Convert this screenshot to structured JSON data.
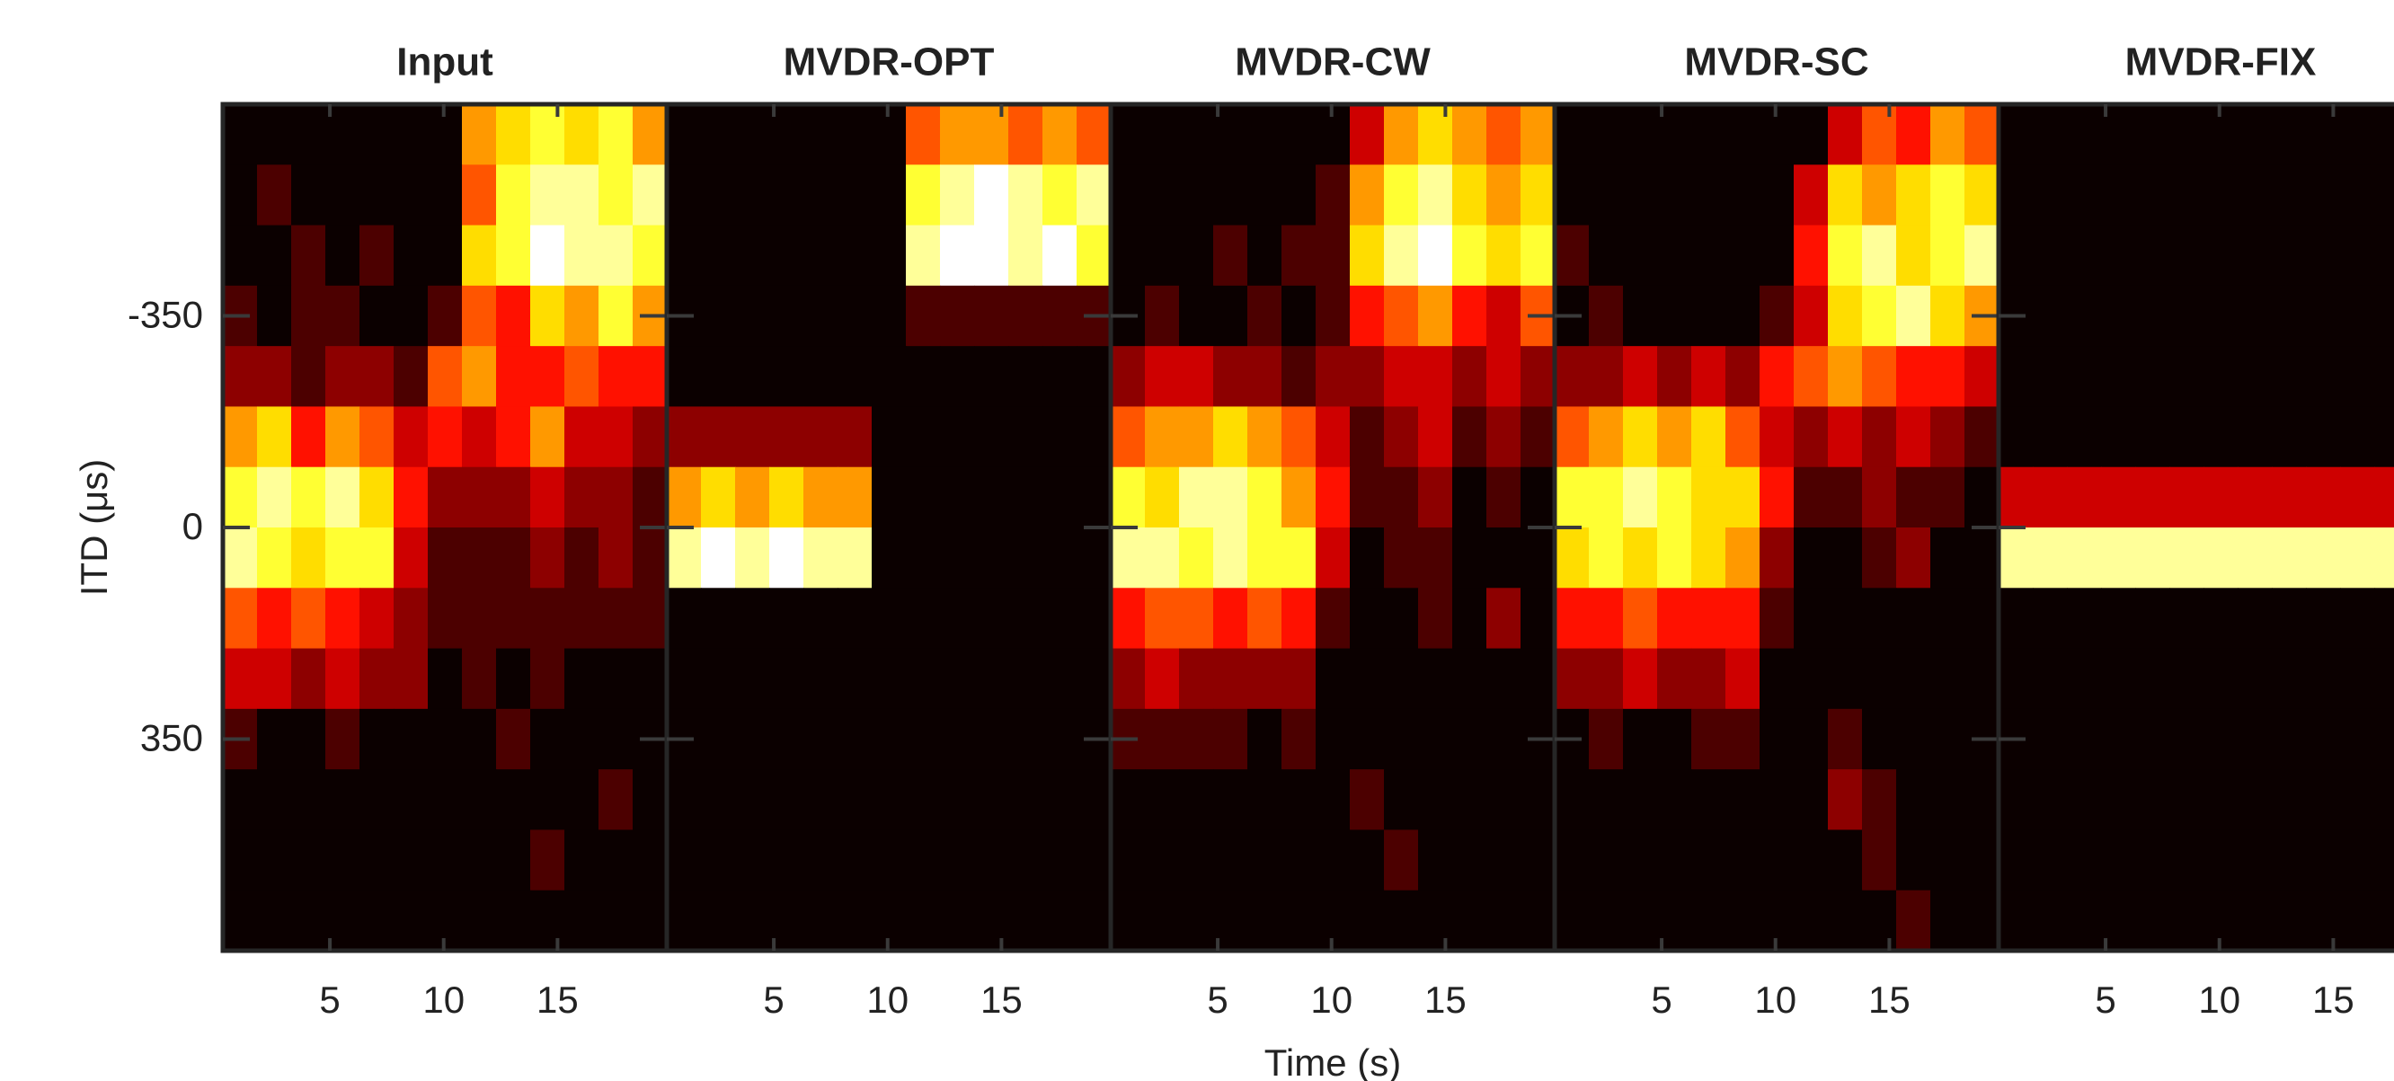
{
  "chart_data": [
    {
      "type": "heatmap",
      "title": "Input",
      "ylabel": "ITD (μs)",
      "colormap": "hot",
      "clim": [
        0,
        1
      ],
      "x": [
        1.05,
        2.55,
        4.05,
        5.55,
        7.05,
        8.55,
        10.05,
        11.55,
        13.05,
        14.55,
        16.05,
        17.55,
        19.05
      ],
      "y": [
        -650,
        -550,
        -450,
        -350,
        -250,
        -150,
        -50,
        50,
        150,
        250,
        350,
        450,
        550,
        650
      ],
      "xlim": [
        0.3,
        19.8
      ],
      "ylim": [
        -700,
        700
      ],
      "y_reversed": true,
      "xticks": [
        5,
        10,
        15
      ],
      "yticks": [
        -350,
        0,
        350
      ],
      "z": [
        [
          0,
          0,
          0,
          0,
          0,
          0,
          0,
          0.6,
          0.7,
          0.8,
          0.7,
          0.8,
          0.6
        ],
        [
          0,
          0.1,
          0,
          0,
          0,
          0,
          0,
          0.5,
          0.8,
          0.9,
          0.9,
          0.8,
          0.9
        ],
        [
          0,
          0,
          0.1,
          0,
          0.1,
          0,
          0,
          0.7,
          0.8,
          1,
          0.9,
          0.9,
          0.8
        ],
        [
          0.1,
          0,
          0.1,
          0.1,
          0,
          0,
          0.1,
          0.5,
          0.4,
          0.7,
          0.6,
          0.8,
          0.6
        ],
        [
          0.2,
          0.2,
          0.1,
          0.2,
          0.2,
          0.1,
          0.5,
          0.6,
          0.4,
          0.4,
          0.5,
          0.4,
          0.4
        ],
        [
          0.6,
          0.7,
          0.4,
          0.6,
          0.5,
          0.3,
          0.4,
          0.3,
          0.4,
          0.6,
          0.3,
          0.3,
          0.2
        ],
        [
          0.8,
          0.9,
          0.8,
          0.9,
          0.7,
          0.4,
          0.2,
          0.2,
          0.2,
          0.3,
          0.2,
          0.2,
          0.1
        ],
        [
          0.9,
          0.8,
          0.7,
          0.8,
          0.8,
          0.3,
          0.1,
          0.1,
          0.1,
          0.2,
          0.1,
          0.2,
          0.1
        ],
        [
          0.5,
          0.4,
          0.5,
          0.4,
          0.3,
          0.2,
          0.1,
          0.1,
          0.1,
          0.1,
          0.1,
          0.1,
          0.1
        ],
        [
          0.3,
          0.3,
          0.2,
          0.3,
          0.2,
          0.2,
          0,
          0.1,
          0,
          0.1,
          0,
          0,
          0
        ],
        [
          0.1,
          0,
          0,
          0.1,
          0,
          0,
          0,
          0,
          0.1,
          0,
          0,
          0,
          0
        ],
        [
          0,
          0,
          0,
          0,
          0,
          0,
          0,
          0,
          0,
          0,
          0,
          0.1,
          0
        ],
        [
          0,
          0,
          0,
          0,
          0,
          0,
          0,
          0,
          0,
          0.1,
          0,
          0,
          0
        ],
        [
          0,
          0,
          0,
          0,
          0,
          0,
          0,
          0,
          0,
          0,
          0,
          0,
          0
        ]
      ]
    },
    {
      "type": "heatmap",
      "title": "MVDR-OPT",
      "colormap": "hot",
      "clim": [
        0,
        1
      ],
      "x": [
        1.05,
        2.55,
        4.05,
        5.55,
        7.05,
        8.55,
        10.05,
        11.55,
        13.05,
        14.55,
        16.05,
        17.55,
        19.05
      ],
      "y": [
        -650,
        -550,
        -450,
        -350,
        -250,
        -150,
        -50,
        50,
        150,
        250,
        350,
        450,
        550,
        650
      ],
      "xlim": [
        0.3,
        19.8
      ],
      "ylim": [
        -700,
        700
      ],
      "y_reversed": true,
      "xticks": [
        5,
        10,
        15
      ],
      "z": [
        [
          0,
          0,
          0,
          0,
          0,
          0,
          0,
          0.5,
          0.6,
          0.6,
          0.5,
          0.6,
          0.5
        ],
        [
          0,
          0,
          0,
          0,
          0,
          0,
          0,
          0.8,
          0.9,
          1,
          0.9,
          0.8,
          0.9
        ],
        [
          0,
          0,
          0,
          0,
          0,
          0,
          0,
          0.9,
          1,
          1,
          0.9,
          1,
          0.8
        ],
        [
          0,
          0,
          0,
          0,
          0,
          0,
          0,
          0.1,
          0.1,
          0.1,
          0.1,
          0.1,
          0.1
        ],
        [
          0,
          0,
          0,
          0,
          0,
          0,
          0,
          0,
          0,
          0,
          0,
          0,
          0
        ],
        [
          0.2,
          0.2,
          0.2,
          0.2,
          0.2,
          0.2,
          0,
          0,
          0,
          0,
          0,
          0,
          0
        ],
        [
          0.6,
          0.7,
          0.6,
          0.7,
          0.6,
          0.6,
          0,
          0,
          0,
          0,
          0,
          0,
          0
        ],
        [
          0.9,
          1,
          0.9,
          1,
          0.9,
          0.9,
          0,
          0,
          0,
          0,
          0,
          0,
          0
        ],
        [
          0,
          0,
          0,
          0,
          0,
          0,
          0,
          0,
          0,
          0,
          0,
          0,
          0
        ],
        [
          0,
          0,
          0,
          0,
          0,
          0,
          0,
          0,
          0,
          0,
          0,
          0,
          0
        ],
        [
          0,
          0,
          0,
          0,
          0,
          0,
          0,
          0,
          0,
          0,
          0,
          0,
          0
        ],
        [
          0,
          0,
          0,
          0,
          0,
          0,
          0,
          0,
          0,
          0,
          0,
          0,
          0
        ],
        [
          0,
          0,
          0,
          0,
          0,
          0,
          0,
          0,
          0,
          0,
          0,
          0,
          0
        ],
        [
          0,
          0,
          0,
          0,
          0,
          0,
          0,
          0,
          0,
          0,
          0,
          0,
          0
        ]
      ]
    },
    {
      "type": "heatmap",
      "title": "MVDR-CW",
      "xlabel": "Time (s)",
      "colormap": "hot",
      "clim": [
        0,
        1
      ],
      "x": [
        1.05,
        2.55,
        4.05,
        5.55,
        7.05,
        8.55,
        10.05,
        11.55,
        13.05,
        14.55,
        16.05,
        17.55,
        19.05
      ],
      "y": [
        -650,
        -550,
        -450,
        -350,
        -250,
        -150,
        -50,
        50,
        150,
        250,
        350,
        450,
        550,
        650
      ],
      "xlim": [
        0.3,
        19.8
      ],
      "ylim": [
        -700,
        700
      ],
      "y_reversed": true,
      "xticks": [
        5,
        10,
        15
      ],
      "z": [
        [
          0,
          0,
          0,
          0,
          0,
          0,
          0,
          0.3,
          0.6,
          0.7,
          0.6,
          0.5,
          0.6
        ],
        [
          0,
          0,
          0,
          0,
          0,
          0,
          0.1,
          0.6,
          0.8,
          0.9,
          0.7,
          0.6,
          0.7
        ],
        [
          0,
          0,
          0,
          0.1,
          0,
          0.1,
          0.1,
          0.7,
          0.9,
          1,
          0.8,
          0.7,
          0.8
        ],
        [
          0,
          0.1,
          0,
          0,
          0.1,
          0,
          0.1,
          0.4,
          0.5,
          0.6,
          0.4,
          0.3,
          0.5
        ],
        [
          0.2,
          0.3,
          0.3,
          0.2,
          0.2,
          0.1,
          0.2,
          0.2,
          0.3,
          0.3,
          0.2,
          0.3,
          0.2
        ],
        [
          0.5,
          0.6,
          0.6,
          0.7,
          0.6,
          0.5,
          0.3,
          0.1,
          0.2,
          0.3,
          0.1,
          0.2,
          0.1
        ],
        [
          0.8,
          0.7,
          0.9,
          0.9,
          0.8,
          0.6,
          0.4,
          0.1,
          0.1,
          0.2,
          0,
          0.1,
          0
        ],
        [
          0.9,
          0.9,
          0.8,
          0.9,
          0.8,
          0.8,
          0.3,
          0,
          0.1,
          0.1,
          0,
          0,
          0
        ],
        [
          0.4,
          0.5,
          0.5,
          0.4,
          0.5,
          0.4,
          0.1,
          0,
          0,
          0.1,
          0,
          0.2,
          0
        ],
        [
          0.2,
          0.3,
          0.2,
          0.2,
          0.2,
          0.2,
          0,
          0,
          0,
          0,
          0,
          0,
          0
        ],
        [
          0.1,
          0.1,
          0.1,
          0.1,
          0,
          0.1,
          0,
          0,
          0,
          0,
          0,
          0,
          0
        ],
        [
          0,
          0,
          0,
          0,
          0,
          0,
          0,
          0.1,
          0,
          0,
          0,
          0,
          0
        ],
        [
          0,
          0,
          0,
          0,
          0,
          0,
          0,
          0,
          0.1,
          0,
          0,
          0,
          0
        ],
        [
          0,
          0,
          0,
          0,
          0,
          0,
          0,
          0,
          0,
          0,
          0,
          0,
          0
        ]
      ]
    },
    {
      "type": "heatmap",
      "title": "MVDR-SC",
      "colormap": "hot",
      "clim": [
        0,
        1
      ],
      "x": [
        1.05,
        2.55,
        4.05,
        5.55,
        7.05,
        8.55,
        10.05,
        11.55,
        13.05,
        14.55,
        16.05,
        17.55,
        19.05
      ],
      "y": [
        -650,
        -550,
        -450,
        -350,
        -250,
        -150,
        -50,
        50,
        150,
        250,
        350,
        450,
        550,
        650
      ],
      "xlim": [
        0.3,
        19.8
      ],
      "ylim": [
        -700,
        700
      ],
      "y_reversed": true,
      "xticks": [
        5,
        10,
        15
      ],
      "z": [
        [
          0,
          0,
          0,
          0,
          0,
          0,
          0,
          0,
          0.3,
          0.5,
          0.4,
          0.6,
          0.5
        ],
        [
          0,
          0,
          0,
          0,
          0,
          0,
          0,
          0.3,
          0.7,
          0.6,
          0.7,
          0.8,
          0.7
        ],
        [
          0.1,
          0,
          0,
          0,
          0,
          0,
          0,
          0.4,
          0.8,
          0.9,
          0.7,
          0.8,
          0.9
        ],
        [
          0,
          0.1,
          0,
          0,
          0,
          0,
          0.1,
          0.3,
          0.7,
          0.8,
          0.9,
          0.7,
          0.6
        ],
        [
          0.2,
          0.2,
          0.3,
          0.2,
          0.3,
          0.2,
          0.4,
          0.5,
          0.6,
          0.5,
          0.4,
          0.4,
          0.3
        ],
        [
          0.5,
          0.6,
          0.7,
          0.6,
          0.7,
          0.5,
          0.3,
          0.2,
          0.3,
          0.2,
          0.3,
          0.2,
          0.1
        ],
        [
          0.8,
          0.8,
          0.9,
          0.8,
          0.7,
          0.7,
          0.4,
          0.1,
          0.1,
          0.2,
          0.1,
          0.1,
          0
        ],
        [
          0.7,
          0.8,
          0.7,
          0.8,
          0.7,
          0.6,
          0.2,
          0,
          0,
          0.1,
          0.2,
          0,
          0
        ],
        [
          0.4,
          0.4,
          0.5,
          0.4,
          0.4,
          0.4,
          0.1,
          0,
          0,
          0,
          0,
          0,
          0
        ],
        [
          0.2,
          0.2,
          0.3,
          0.2,
          0.2,
          0.3,
          0,
          0,
          0,
          0,
          0,
          0,
          0
        ],
        [
          0,
          0.1,
          0,
          0,
          0.1,
          0.1,
          0,
          0,
          0.1,
          0,
          0,
          0,
          0
        ],
        [
          0,
          0,
          0,
          0,
          0,
          0,
          0,
          0,
          0.2,
          0.1,
          0,
          0,
          0
        ],
        [
          0,
          0,
          0,
          0,
          0,
          0,
          0,
          0,
          0,
          0.1,
          0,
          0,
          0
        ],
        [
          0,
          0,
          0,
          0,
          0,
          0,
          0,
          0,
          0,
          0,
          0.1,
          0,
          0
        ]
      ]
    },
    {
      "type": "heatmap",
      "title": "MVDR-FIX",
      "colormap": "hot",
      "clim": [
        0,
        1
      ],
      "x": [
        1.05,
        2.55,
        4.05,
        5.55,
        7.05,
        8.55,
        10.05,
        11.55,
        13.05,
        14.55,
        16.05,
        17.55,
        19.05
      ],
      "y": [
        -650,
        -550,
        -450,
        -350,
        -250,
        -150,
        -50,
        50,
        150,
        250,
        350,
        450,
        550,
        650
      ],
      "xlim": [
        0.3,
        19.8
      ],
      "ylim": [
        -700,
        700
      ],
      "y_reversed": true,
      "xticks": [
        5,
        10,
        15
      ],
      "z": [
        [
          0,
          0,
          0,
          0,
          0,
          0,
          0,
          0,
          0,
          0,
          0,
          0,
          0
        ],
        [
          0,
          0,
          0,
          0,
          0,
          0,
          0,
          0,
          0,
          0,
          0,
          0,
          0
        ],
        [
          0,
          0,
          0,
          0,
          0,
          0,
          0,
          0,
          0,
          0,
          0,
          0,
          0
        ],
        [
          0,
          0,
          0,
          0,
          0,
          0,
          0,
          0,
          0,
          0,
          0,
          0,
          0
        ],
        [
          0,
          0,
          0,
          0,
          0,
          0,
          0,
          0,
          0,
          0,
          0,
          0,
          0
        ],
        [
          0,
          0,
          0,
          0,
          0,
          0,
          0,
          0,
          0,
          0,
          0,
          0,
          0
        ],
        [
          0.3,
          0.3,
          0.3,
          0.3,
          0.3,
          0.3,
          0.3,
          0.3,
          0.3,
          0.3,
          0.3,
          0.3,
          0.3
        ],
        [
          0.9,
          0.9,
          0.9,
          0.9,
          0.9,
          0.9,
          0.9,
          0.9,
          0.9,
          0.9,
          0.9,
          0.9,
          0.9
        ],
        [
          0,
          0,
          0,
          0,
          0,
          0,
          0,
          0,
          0,
          0,
          0,
          0,
          0
        ],
        [
          0,
          0,
          0,
          0,
          0,
          0,
          0,
          0,
          0,
          0,
          0,
          0,
          0
        ],
        [
          0,
          0,
          0,
          0,
          0,
          0,
          0,
          0,
          0,
          0,
          0,
          0,
          0
        ],
        [
          0,
          0,
          0,
          0,
          0,
          0,
          0,
          0,
          0,
          0,
          0,
          0,
          0
        ],
        [
          0,
          0,
          0,
          0,
          0,
          0,
          0,
          0,
          0,
          0,
          0,
          0,
          0
        ],
        [
          0,
          0,
          0,
          0,
          0,
          0,
          0,
          0,
          0,
          0,
          0,
          0,
          0
        ]
      ]
    }
  ]
}
